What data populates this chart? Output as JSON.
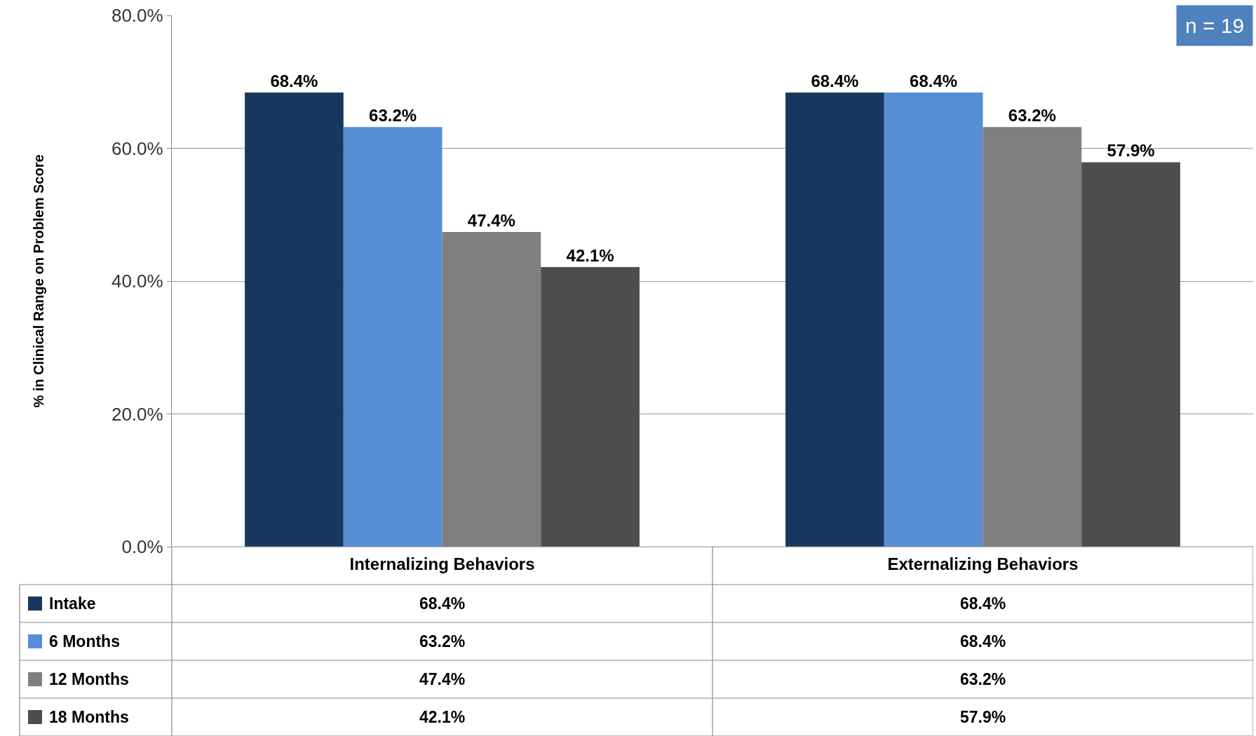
{
  "chart_data": {
    "type": "bar",
    "ylabel": "% in Clinical Range on Problem Score",
    "categories": [
      "Internalizing Behaviors",
      "Externalizing Behaviors"
    ],
    "series": [
      {
        "name": "Intake",
        "color": "#17375e",
        "values": [
          68.4,
          68.4
        ],
        "value_labels": [
          "68.4%",
          "68.4%"
        ]
      },
      {
        "name": "6 Months",
        "color": "#558ed5",
        "values": [
          63.2,
          68.4
        ],
        "value_labels": [
          "63.2%",
          "68.4%"
        ]
      },
      {
        "name": "12 Months",
        "color": "#7f7f7f",
        "values": [
          47.4,
          63.2
        ],
        "value_labels": [
          "47.4%",
          "63.2%"
        ]
      },
      {
        "name": "18 Months",
        "color": "#4d4d4d",
        "values": [
          42.1,
          57.9
        ],
        "value_labels": [
          "42.1%",
          "57.9%"
        ]
      }
    ],
    "ylim": [
      0,
      80
    ],
    "yticks": [
      {
        "value": 0,
        "label": "0.0%"
      },
      {
        "value": 20,
        "label": "20.0%"
      },
      {
        "value": 40,
        "label": "40.0%"
      },
      {
        "value": 60,
        "label": "60.0%"
      },
      {
        "value": 80,
        "label": "80.0%"
      }
    ],
    "grid": "y",
    "legend": "bottom",
    "annotations": [
      "n = 19"
    ]
  }
}
